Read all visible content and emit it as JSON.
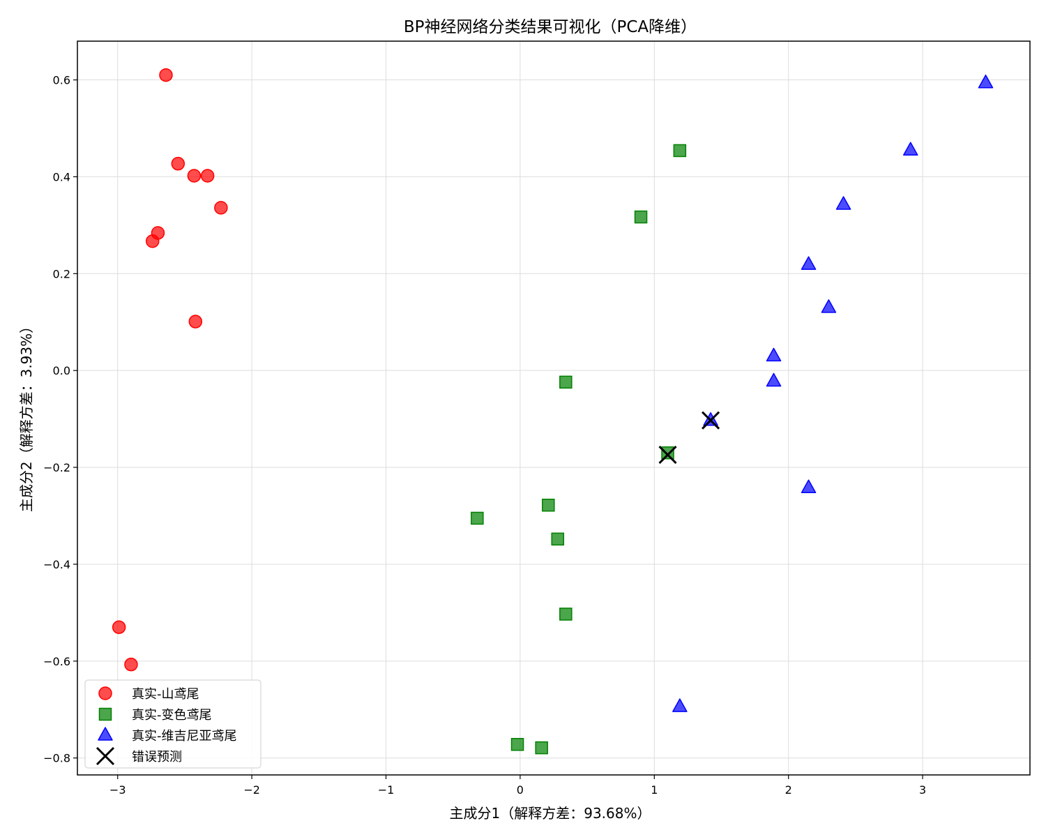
{
  "chart_data": {
    "type": "scatter",
    "title": "BP神经网络分类结果可视化（PCA降维）",
    "xlabel": "主成分1（解释方差：93.68%）",
    "ylabel": "主成分2（解释方差：3.93%）",
    "xlim": [
      -3.3,
      3.8
    ],
    "ylim": [
      -0.835,
      0.68
    ],
    "xticks": [
      -3,
      -2,
      -1,
      0,
      1,
      2,
      3
    ],
    "xtick_labels": [
      "−3",
      "−2",
      "−1",
      "0",
      "1",
      "2",
      "3"
    ],
    "yticks": [
      -0.8,
      -0.6,
      -0.4,
      -0.2,
      0.0,
      0.2,
      0.4,
      0.6
    ],
    "ytick_labels": [
      "−0.8",
      "−0.6",
      "−0.4",
      "−0.2",
      "0.0",
      "0.2",
      "0.4",
      "0.6"
    ],
    "grid": true,
    "legend_position": "bottom-left",
    "series": [
      {
        "name": "真实-山鸢尾",
        "marker": "circle",
        "color": "#ff0000",
        "points": [
          [
            -2.64,
            0.61
          ],
          [
            -2.55,
            0.427
          ],
          [
            -2.43,
            0.402
          ],
          [
            -2.33,
            0.402
          ],
          [
            -2.23,
            0.336
          ],
          [
            -2.7,
            0.284
          ],
          [
            -2.74,
            0.267
          ],
          [
            -2.42,
            0.101
          ],
          [
            -2.99,
            -0.53
          ],
          [
            -2.9,
            -0.607
          ]
        ]
      },
      {
        "name": "真实-变色鸢尾",
        "marker": "square",
        "color": "#008000",
        "points": [
          [
            1.19,
            0.454
          ],
          [
            0.9,
            0.317
          ],
          [
            0.34,
            -0.024
          ],
          [
            1.1,
            -0.17
          ],
          [
            0.21,
            -0.278
          ],
          [
            -0.32,
            -0.305
          ],
          [
            0.28,
            -0.348
          ],
          [
            0.34,
            -0.503
          ],
          [
            -0.02,
            -0.772
          ],
          [
            0.16,
            -0.779
          ]
        ]
      },
      {
        "name": "真实-维吉尼亚鸢尾",
        "marker": "triangle",
        "color": "#0000ff",
        "points": [
          [
            3.47,
            0.594
          ],
          [
            2.91,
            0.455
          ],
          [
            2.41,
            0.343
          ],
          [
            2.15,
            0.219
          ],
          [
            2.3,
            0.13
          ],
          [
            1.89,
            0.03
          ],
          [
            1.89,
            -0.022
          ],
          [
            1.42,
            -0.103
          ],
          [
            2.15,
            -0.242
          ],
          [
            1.19,
            -0.694
          ]
        ]
      },
      {
        "name": "错误预测",
        "marker": "x",
        "color": "#000000",
        "points": [
          [
            1.42,
            -0.103
          ],
          [
            1.1,
            -0.174
          ]
        ]
      }
    ]
  }
}
